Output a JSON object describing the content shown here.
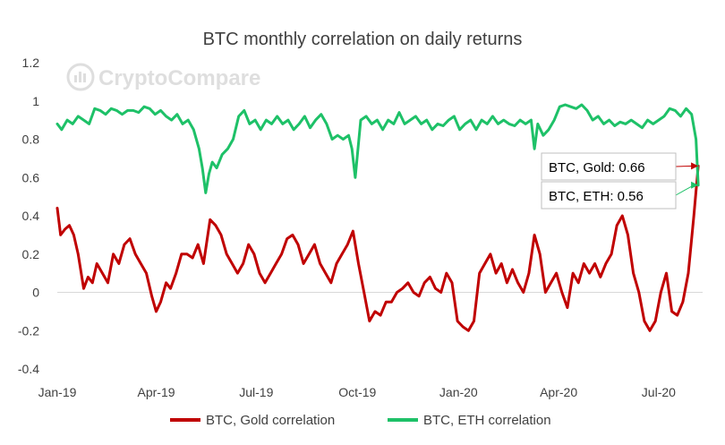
{
  "chart_data": {
    "type": "line",
    "title": "BTC monthly correlation on daily returns",
    "watermark": "CryptoCompare",
    "xlabel": "",
    "ylabel": "",
    "x_range": [
      "2019-01-01",
      "2020-08-10"
    ],
    "x_tick_labels": [
      "Jan-19",
      "Apr-19",
      "Jul-19",
      "Oct-19",
      "Jan-20",
      "Apr-20",
      "Jul-20"
    ],
    "x_ticks": [
      "2019-01-01",
      "2019-04-01",
      "2019-07-01",
      "2019-10-01",
      "2020-01-01",
      "2020-04-01",
      "2020-07-01"
    ],
    "ylim": [
      -0.4,
      1.2
    ],
    "y_ticks": [
      -0.4,
      -0.2,
      0,
      0.2,
      0.4,
      0.6,
      0.8,
      1,
      1.2
    ],
    "y_tick_labels": [
      "-0.4",
      "-0.2",
      "0",
      "0.2",
      "0.4",
      "0.6",
      "0.8",
      "1",
      "1.2"
    ],
    "grid": false,
    "legend_position": "bottom",
    "series": [
      {
        "name": "BTC, Gold correlation",
        "color": "#c00000",
        "x": [
          "2019-01-01",
          "2019-01-04",
          "2019-01-08",
          "2019-01-12",
          "2019-01-16",
          "2019-01-20",
          "2019-01-25",
          "2019-01-29",
          "2019-02-02",
          "2019-02-06",
          "2019-02-11",
          "2019-02-16",
          "2019-02-21",
          "2019-02-26",
          "2019-03-03",
          "2019-03-08",
          "2019-03-13",
          "2019-03-18",
          "2019-03-23",
          "2019-03-28",
          "2019-04-01",
          "2019-04-05",
          "2019-04-10",
          "2019-04-14",
          "2019-04-19",
          "2019-04-24",
          "2019-04-29",
          "2019-05-04",
          "2019-05-09",
          "2019-05-14",
          "2019-05-20",
          "2019-05-25",
          "2019-05-30",
          "2019-06-04",
          "2019-06-09",
          "2019-06-14",
          "2019-06-19",
          "2019-06-24",
          "2019-06-29",
          "2019-07-04",
          "2019-07-09",
          "2019-07-14",
          "2019-07-19",
          "2019-07-24",
          "2019-07-29",
          "2019-08-03",
          "2019-08-08",
          "2019-08-13",
          "2019-08-18",
          "2019-08-23",
          "2019-08-28",
          "2019-09-02",
          "2019-09-07",
          "2019-09-12",
          "2019-09-17",
          "2019-09-22",
          "2019-09-27",
          "2019-10-02",
          "2019-10-07",
          "2019-10-12",
          "2019-10-17",
          "2019-10-22",
          "2019-10-27",
          "2019-11-01",
          "2019-11-06",
          "2019-11-11",
          "2019-11-16",
          "2019-11-21",
          "2019-11-26",
          "2019-12-01",
          "2019-12-06",
          "2019-12-11",
          "2019-12-16",
          "2019-12-21",
          "2019-12-26",
          "2019-12-31",
          "2020-01-05",
          "2020-01-10",
          "2020-01-15",
          "2020-01-20",
          "2020-01-25",
          "2020-01-30",
          "2020-02-04",
          "2020-02-09",
          "2020-02-14",
          "2020-02-19",
          "2020-02-24",
          "2020-02-29",
          "2020-03-05",
          "2020-03-10",
          "2020-03-15",
          "2020-03-20",
          "2020-03-25",
          "2020-03-30",
          "2020-04-04",
          "2020-04-09",
          "2020-04-14",
          "2020-04-19",
          "2020-04-24",
          "2020-04-29",
          "2020-05-04",
          "2020-05-09",
          "2020-05-14",
          "2020-05-19",
          "2020-05-24",
          "2020-05-29",
          "2020-06-03",
          "2020-06-08",
          "2020-06-13",
          "2020-06-18",
          "2020-06-23",
          "2020-06-28",
          "2020-07-03",
          "2020-07-08",
          "2020-07-13",
          "2020-07-18",
          "2020-07-23",
          "2020-07-28",
          "2020-08-02",
          "2020-08-06"
        ],
        "values": [
          0.44,
          0.3,
          0.33,
          0.35,
          0.3,
          0.2,
          0.02,
          0.08,
          0.05,
          0.15,
          0.1,
          0.05,
          0.2,
          0.15,
          0.25,
          0.28,
          0.2,
          0.15,
          0.1,
          -0.02,
          -0.1,
          -0.05,
          0.05,
          0.02,
          0.1,
          0.2,
          0.2,
          0.18,
          0.25,
          0.15,
          0.38,
          0.35,
          0.3,
          0.2,
          0.15,
          0.1,
          0.15,
          0.25,
          0.2,
          0.1,
          0.05,
          0.1,
          0.15,
          0.2,
          0.28,
          0.3,
          0.25,
          0.15,
          0.2,
          0.25,
          0.15,
          0.1,
          0.05,
          0.15,
          0.2,
          0.25,
          0.32,
          0.15,
          0.0,
          -0.15,
          -0.1,
          -0.12,
          -0.05,
          -0.05,
          0.0,
          0.02,
          0.05,
          0.0,
          -0.02,
          0.05,
          0.08,
          0.02,
          0.0,
          0.1,
          0.05,
          -0.15,
          -0.18,
          -0.2,
          -0.15,
          0.1,
          0.15,
          0.2,
          0.1,
          0.15,
          0.05,
          0.12,
          0.05,
          0.0,
          0.1,
          0.3,
          0.2,
          0.0,
          0.05,
          0.1,
          0.0,
          -0.08,
          0.1,
          0.05,
          0.15,
          0.1,
          0.15,
          0.08,
          0.15,
          0.2,
          0.35,
          0.4,
          0.3,
          0.1,
          0.0,
          -0.15,
          -0.2,
          -0.15,
          0.0,
          0.1,
          -0.1,
          -0.12,
          -0.05,
          0.1,
          0.4,
          0.66
        ]
      },
      {
        "name": "BTC, ETH correlation",
        "color": "#1ec168",
        "x": [
          "2019-01-01",
          "2019-01-05",
          "2019-01-10",
          "2019-01-15",
          "2019-01-20",
          "2019-01-25",
          "2019-01-30",
          "2019-02-04",
          "2019-02-09",
          "2019-02-14",
          "2019-02-19",
          "2019-02-24",
          "2019-03-01",
          "2019-03-06",
          "2019-03-11",
          "2019-03-16",
          "2019-03-21",
          "2019-03-26",
          "2019-03-31",
          "2019-04-05",
          "2019-04-10",
          "2019-04-15",
          "2019-04-20",
          "2019-04-25",
          "2019-04-30",
          "2019-05-05",
          "2019-05-10",
          "2019-05-13",
          "2019-05-16",
          "2019-05-19",
          "2019-05-22",
          "2019-05-26",
          "2019-05-31",
          "2019-06-05",
          "2019-06-10",
          "2019-06-15",
          "2019-06-20",
          "2019-06-25",
          "2019-06-30",
          "2019-07-05",
          "2019-07-10",
          "2019-07-15",
          "2019-07-20",
          "2019-07-25",
          "2019-07-30",
          "2019-08-04",
          "2019-08-09",
          "2019-08-14",
          "2019-08-19",
          "2019-08-24",
          "2019-08-29",
          "2019-09-03",
          "2019-09-08",
          "2019-09-13",
          "2019-09-18",
          "2019-09-23",
          "2019-09-26",
          "2019-09-29",
          "2019-10-04",
          "2019-10-09",
          "2019-10-14",
          "2019-10-19",
          "2019-10-24",
          "2019-10-29",
          "2019-11-03",
          "2019-11-08",
          "2019-11-13",
          "2019-11-18",
          "2019-11-23",
          "2019-11-28",
          "2019-12-03",
          "2019-12-08",
          "2019-12-13",
          "2019-12-18",
          "2019-12-23",
          "2019-12-28",
          "2020-01-02",
          "2020-01-07",
          "2020-01-12",
          "2020-01-17",
          "2020-01-22",
          "2020-01-27",
          "2020-02-01",
          "2020-02-06",
          "2020-02-11",
          "2020-02-16",
          "2020-02-21",
          "2020-02-26",
          "2020-03-02",
          "2020-03-07",
          "2020-03-10",
          "2020-03-13",
          "2020-03-18",
          "2020-03-23",
          "2020-03-28",
          "2020-04-02",
          "2020-04-07",
          "2020-04-12",
          "2020-04-17",
          "2020-04-22",
          "2020-04-27",
          "2020-05-02",
          "2020-05-07",
          "2020-05-12",
          "2020-05-17",
          "2020-05-22",
          "2020-05-27",
          "2020-06-01",
          "2020-06-06",
          "2020-06-11",
          "2020-06-16",
          "2020-06-21",
          "2020-06-26",
          "2020-07-01",
          "2020-07-06",
          "2020-07-11",
          "2020-07-16",
          "2020-07-21",
          "2020-07-26",
          "2020-07-31",
          "2020-08-04",
          "2020-08-06"
        ],
        "values": [
          0.88,
          0.85,
          0.9,
          0.88,
          0.92,
          0.9,
          0.88,
          0.96,
          0.95,
          0.93,
          0.96,
          0.95,
          0.93,
          0.95,
          0.95,
          0.94,
          0.97,
          0.96,
          0.93,
          0.95,
          0.92,
          0.9,
          0.93,
          0.88,
          0.9,
          0.85,
          0.75,
          0.65,
          0.52,
          0.62,
          0.68,
          0.65,
          0.72,
          0.75,
          0.8,
          0.92,
          0.95,
          0.88,
          0.9,
          0.85,
          0.9,
          0.88,
          0.92,
          0.88,
          0.9,
          0.85,
          0.88,
          0.92,
          0.86,
          0.9,
          0.93,
          0.88,
          0.8,
          0.82,
          0.8,
          0.82,
          0.75,
          0.6,
          0.9,
          0.92,
          0.88,
          0.9,
          0.85,
          0.9,
          0.88,
          0.94,
          0.88,
          0.9,
          0.92,
          0.88,
          0.9,
          0.85,
          0.88,
          0.87,
          0.9,
          0.92,
          0.85,
          0.88,
          0.9,
          0.85,
          0.9,
          0.88,
          0.92,
          0.88,
          0.9,
          0.88,
          0.87,
          0.9,
          0.88,
          0.9,
          0.75,
          0.88,
          0.82,
          0.85,
          0.9,
          0.97,
          0.98,
          0.97,
          0.96,
          0.98,
          0.95,
          0.9,
          0.92,
          0.88,
          0.9,
          0.87,
          0.89,
          0.88,
          0.9,
          0.88,
          0.86,
          0.9,
          0.88,
          0.9,
          0.92,
          0.96,
          0.95,
          0.92,
          0.96,
          0.93,
          0.8,
          0.56
        ]
      }
    ],
    "annotations": [
      {
        "text": "BTC, Gold: 0.66",
        "series": 0,
        "value": 0.66
      },
      {
        "text": "BTC, ETH: 0.56",
        "series": 1,
        "value": 0.56
      }
    ]
  }
}
